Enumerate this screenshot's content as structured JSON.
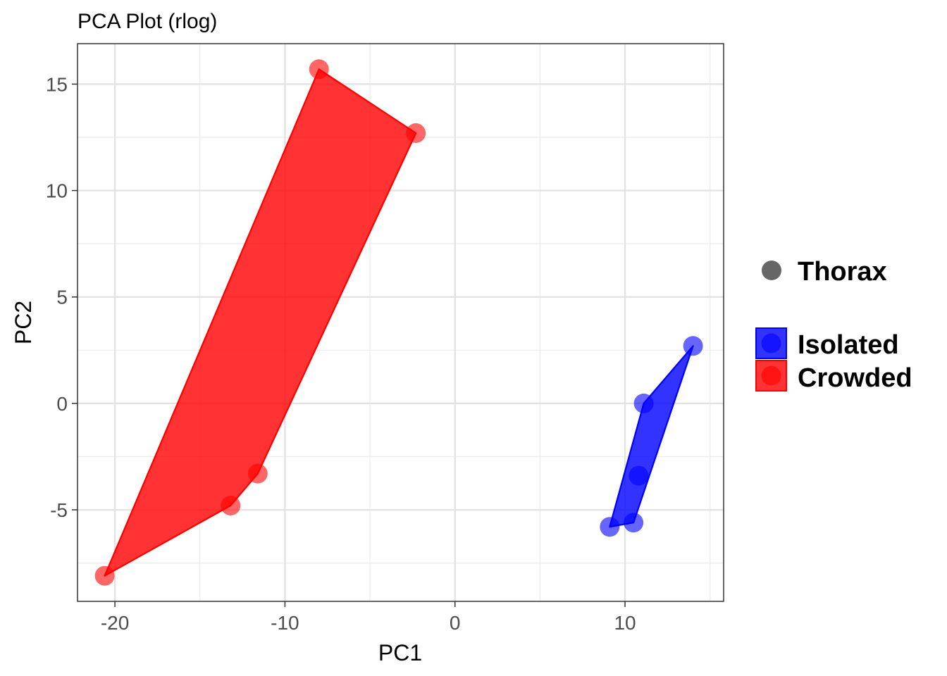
{
  "chart_data": {
    "type": "scatter",
    "title": "PCA Plot (rlog)",
    "xlabel": "PC1",
    "ylabel": "PC2",
    "xlim": [
      -22.2,
      15.8
    ],
    "ylim": [
      -9.3,
      16.9
    ],
    "x_major_ticks": [
      -20,
      -10,
      0,
      10
    ],
    "x_tick_labels": [
      "-20",
      "-10",
      "0",
      "10"
    ],
    "y_major_ticks": [
      -5,
      0,
      5,
      10,
      15
    ],
    "y_tick_labels": [
      "-5",
      "0",
      "5",
      "10",
      "15"
    ],
    "x_minor_ticks": [
      -15,
      -5,
      5,
      15
    ],
    "y_minor_ticks": [
      -7.5,
      -2.5,
      2.5,
      7.5,
      12.5
    ],
    "grid": true,
    "legend_position": "right",
    "shape_legend": {
      "label": "Thorax",
      "color": "#666666"
    },
    "series": [
      {
        "name": "Isolated",
        "color": "#0000ff",
        "points": [
          {
            "x": 9.1,
            "y": -5.8
          },
          {
            "x": 10.5,
            "y": -5.6
          },
          {
            "x": 10.8,
            "y": -3.4
          },
          {
            "x": 11.1,
            "y": 0.0
          },
          {
            "x": 14.0,
            "y": 2.7
          }
        ],
        "hull": [
          {
            "x": 9.1,
            "y": -5.8
          },
          {
            "x": 10.5,
            "y": -5.6
          },
          {
            "x": 14.0,
            "y": 2.7
          },
          {
            "x": 11.1,
            "y": 0.0
          }
        ]
      },
      {
        "name": "Crowded",
        "color": "#ff0000",
        "points": [
          {
            "x": -20.6,
            "y": -8.1
          },
          {
            "x": -13.2,
            "y": -4.8
          },
          {
            "x": -11.6,
            "y": -3.3
          },
          {
            "x": -8.0,
            "y": 15.7
          },
          {
            "x": -2.3,
            "y": 12.7
          }
        ],
        "hull": [
          {
            "x": -20.6,
            "y": -8.1
          },
          {
            "x": -13.2,
            "y": -4.8
          },
          {
            "x": -11.6,
            "y": -3.3
          },
          {
            "x": -2.3,
            "y": 12.7
          },
          {
            "x": -8.0,
            "y": 15.7
          }
        ]
      }
    ]
  }
}
